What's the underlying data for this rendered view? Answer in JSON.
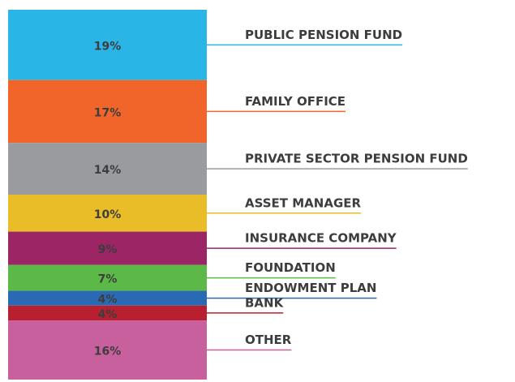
{
  "chart_data": {
    "type": "stacked-column",
    "categories": [
      "PUBLIC PENSION FUND",
      "FAMILY OFFICE",
      "PRIVATE SECTOR PENSION FUND",
      "ASSET MANAGER",
      "INSURANCE COMPANY",
      "FOUNDATION",
      "ENDOWMENT PLAN",
      "BANK",
      "OTHER"
    ],
    "values": [
      19,
      17,
      14,
      10,
      9,
      7,
      4,
      4,
      16
    ],
    "value_labels": [
      "19%",
      "17%",
      "14%",
      "10%",
      "9%",
      "7%",
      "4%",
      "4%",
      "16%"
    ],
    "colors": [
      "#29b6e6",
      "#f2652a",
      "#999b9e",
      "#e9bd27",
      "#9b2565",
      "#5cb947",
      "#2a6ab4",
      "#b8202f",
      "#c8609d"
    ]
  }
}
